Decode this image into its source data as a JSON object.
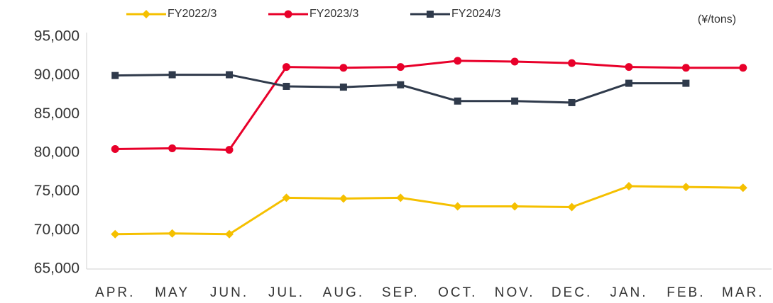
{
  "chart_data": {
    "type": "line",
    "unit": "(¥/tons)",
    "categories": [
      "APR.",
      "MAY",
      "JUN.",
      "JUL.",
      "AUG.",
      "SEP.",
      "OCT.",
      "NOV.",
      "DEC.",
      "JAN.",
      "FEB.",
      "MAR."
    ],
    "series": [
      {
        "name": "FY2022/3",
        "color": "#f5c000",
        "marker": "diamond",
        "values": [
          69500,
          69600,
          69500,
          74200,
          74100,
          74200,
          73100,
          73100,
          73000,
          75700,
          75600,
          75500
        ]
      },
      {
        "name": "FY2023/3",
        "color": "#e8002a",
        "marker": "circle",
        "values": [
          80500,
          80600,
          80400,
          91100,
          91000,
          91100,
          91900,
          91800,
          91600,
          91100,
          91000,
          91000
        ]
      },
      {
        "name": "FY2024/3",
        "color": "#2f3a4b",
        "marker": "square",
        "values": [
          90000,
          90100,
          90100,
          88600,
          88500,
          88800,
          86700,
          86700,
          86500,
          89000,
          89000,
          null
        ]
      }
    ],
    "ylim": [
      65000,
      95000
    ],
    "yticks": [
      {
        "value": 65000,
        "label": "65,000"
      },
      {
        "value": 70000,
        "label": "70,000"
      },
      {
        "value": 75000,
        "label": "75,000"
      },
      {
        "value": 80000,
        "label": "80,000"
      },
      {
        "value": 85000,
        "label": "85,000"
      },
      {
        "value": 90000,
        "label": "90,000"
      },
      {
        "value": 95000,
        "label": "95,000"
      }
    ],
    "grid": false,
    "legend": "top"
  }
}
